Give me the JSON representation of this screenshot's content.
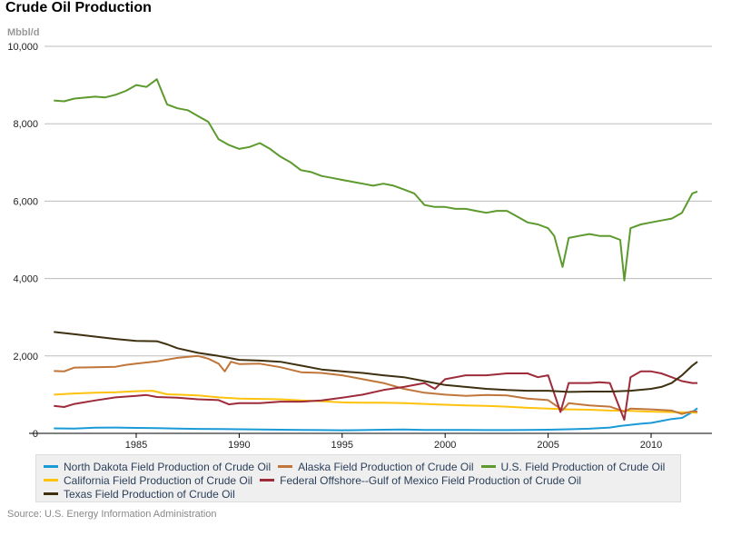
{
  "chart_data": {
    "type": "line",
    "title": "Crude Oil Production",
    "ylabel": "Mbbl/d",
    "xlabel": "",
    "ylim": [
      0,
      10000
    ],
    "xlim": [
      1981,
      2012.6
    ],
    "yticks": [
      0,
      2000,
      4000,
      6000,
      8000,
      10000
    ],
    "ytick_labels": [
      "0",
      "2,000",
      "4,000",
      "6,000",
      "8,000",
      "10,000"
    ],
    "xticks": [
      1985,
      1990,
      1995,
      2000,
      2005,
      2010
    ],
    "xtick_labels": [
      "1985",
      "1990",
      "1995",
      "2000",
      "2005",
      "2010"
    ],
    "grid": true,
    "legend_position": "bottom",
    "source": "Source: U.S. Energy Information Administration",
    "series": [
      {
        "name": "North Dakota Field Production of Crude Oil",
        "color": "#1a9ad6",
        "x": [
          1981,
          1982,
          1983,
          1984,
          1985,
          1986,
          1987,
          1988,
          1989,
          1990,
          1991,
          1992,
          1993,
          1994,
          1995,
          1996,
          1997,
          1998,
          1999,
          2000,
          2001,
          2002,
          2003,
          2004,
          2005,
          2006,
          2007,
          2008,
          2008.5,
          2009,
          2009.5,
          2010,
          2010.5,
          2011,
          2011.5,
          2012,
          2012.25
        ],
        "y": [
          130,
          125,
          145,
          150,
          140,
          135,
          125,
          115,
          110,
          105,
          100,
          95,
          90,
          85,
          80,
          85,
          95,
          100,
          90,
          90,
          88,
          85,
          85,
          86,
          95,
          105,
          120,
          150,
          190,
          220,
          250,
          270,
          320,
          370,
          400,
          550,
          650
        ]
      },
      {
        "name": "Alaska Field Production of Crude Oil",
        "color": "#c0763a",
        "x": [
          1981,
          1981.5,
          1982,
          1983,
          1984,
          1984.5,
          1985,
          1986,
          1987,
          1988,
          1988.5,
          1989,
          1989.3,
          1989.6,
          1990,
          1991,
          1992,
          1993,
          1994,
          1995,
          1996,
          1997,
          1998,
          1999,
          2000,
          2001,
          2002,
          2003,
          2004,
          2005,
          2005.7,
          2006,
          2007,
          2008,
          2008.7,
          2009,
          2010,
          2011,
          2011.5,
          2012,
          2012.25
        ],
        "y": [
          1610,
          1600,
          1700,
          1710,
          1720,
          1770,
          1800,
          1860,
          1950,
          2000,
          1930,
          1800,
          1600,
          1850,
          1790,
          1800,
          1710,
          1580,
          1560,
          1500,
          1400,
          1300,
          1150,
          1050,
          1000,
          970,
          990,
          980,
          900,
          860,
          600,
          780,
          720,
          690,
          560,
          640,
          620,
          590,
          500,
          570,
          560
        ]
      },
      {
        "name": "U.S. Field Production of Crude Oil",
        "color": "#5c9a2e",
        "x": [
          1981,
          1981.5,
          1982,
          1983,
          1983.5,
          1984,
          1984.5,
          1985,
          1985.5,
          1986,
          1986.5,
          1987,
          1987.5,
          1988,
          1988.5,
          1989,
          1989.5,
          1990,
          1990.5,
          1991,
          1991.5,
          1992,
          1992.5,
          1993,
          1993.5,
          1994,
          1994.5,
          1995,
          1995.5,
          1996,
          1996.5,
          1997,
          1997.5,
          1998,
          1998.5,
          1999,
          1999.5,
          2000,
          2000.5,
          2001,
          2001.5,
          2002,
          2002.5,
          2003,
          2003.5,
          2004,
          2004.5,
          2005,
          2005.3,
          2005.7,
          2006,
          2006.5,
          2007,
          2007.5,
          2008,
          2008.5,
          2008.7,
          2009,
          2009.5,
          2010,
          2010.5,
          2011,
          2011.5,
          2012,
          2012.25
        ],
        "y": [
          8600,
          8580,
          8650,
          8700,
          8680,
          8750,
          8850,
          9000,
          8950,
          9150,
          8500,
          8400,
          8350,
          8200,
          8050,
          7600,
          7450,
          7350,
          7400,
          7500,
          7350,
          7150,
          7000,
          6800,
          6750,
          6650,
          6600,
          6550,
          6500,
          6450,
          6400,
          6450,
          6400,
          6300,
          6200,
          5900,
          5850,
          5850,
          5800,
          5800,
          5750,
          5700,
          5750,
          5750,
          5600,
          5450,
          5400,
          5300,
          5100,
          4300,
          5050,
          5100,
          5150,
          5100,
          5100,
          5000,
          3950,
          5300,
          5400,
          5450,
          5500,
          5550,
          5700,
          6200,
          6250
        ]
      },
      {
        "name": "California Field Production of Crude Oil",
        "color": "#ffc20e",
        "x": [
          1981,
          1982,
          1983,
          1984,
          1985,
          1985.8,
          1986.5,
          1987,
          1988,
          1989,
          1990,
          1991,
          1992,
          1993,
          1994,
          1995,
          1996,
          1997,
          1998,
          1999,
          2000,
          2001,
          2002,
          2003,
          2004,
          2005,
          2006,
          2007,
          2008,
          2009,
          2010,
          2011,
          2012,
          2012.25
        ],
        "y": [
          1000,
          1030,
          1050,
          1060,
          1090,
          1100,
          1010,
          1000,
          980,
          930,
          900,
          890,
          880,
          850,
          830,
          800,
          790,
          790,
          780,
          760,
          740,
          720,
          710,
          690,
          660,
          640,
          620,
          610,
          590,
          580,
          560,
          550,
          540,
          530
        ]
      },
      {
        "name": "Federal Offshore--Gulf of Mexico Field Production of Crude Oil",
        "color": "#9e2b3a",
        "x": [
          1981,
          1981.5,
          1982,
          1983,
          1984,
          1985,
          1985.5,
          1986,
          1987,
          1988,
          1989,
          1989.5,
          1990,
          1991,
          1992,
          1993,
          1994,
          1995,
          1996,
          1997,
          1998,
          1999,
          1999.5,
          2000,
          2001,
          2002,
          2003,
          2004,
          2004.5,
          2005,
          2005.6,
          2006,
          2007,
          2007.5,
          2008,
          2008.7,
          2009,
          2009.5,
          2010,
          2010.5,
          2011,
          2011.5,
          2012,
          2012.25
        ],
        "y": [
          710,
          680,
          760,
          850,
          930,
          970,
          990,
          940,
          920,
          880,
          860,
          750,
          780,
          780,
          820,
          820,
          850,
          920,
          1000,
          1120,
          1200,
          1300,
          1150,
          1400,
          1500,
          1500,
          1550,
          1550,
          1450,
          1500,
          550,
          1300,
          1300,
          1320,
          1300,
          350,
          1450,
          1600,
          1600,
          1550,
          1450,
          1350,
          1300,
          1300
        ]
      },
      {
        "name": "Texas Field Production of Crude Oil",
        "color": "#3f3010",
        "x": [
          1981,
          1982,
          1983,
          1984,
          1985,
          1986,
          1986.5,
          1987,
          1988,
          1989,
          1990,
          1991,
          1992,
          1993,
          1994,
          1995,
          1996,
          1997,
          1998,
          1999,
          2000,
          2001,
          2002,
          2003,
          2004,
          2005,
          2006,
          2007,
          2008,
          2009,
          2010,
          2010.5,
          2011,
          2011.5,
          2012,
          2012.25
        ],
        "y": [
          2620,
          2560,
          2500,
          2440,
          2390,
          2380,
          2300,
          2200,
          2080,
          2000,
          1900,
          1880,
          1850,
          1750,
          1650,
          1600,
          1560,
          1500,
          1450,
          1350,
          1250,
          1200,
          1150,
          1120,
          1100,
          1100,
          1070,
          1080,
          1080,
          1100,
          1150,
          1200,
          1300,
          1500,
          1750,
          1850
        ]
      }
    ]
  }
}
